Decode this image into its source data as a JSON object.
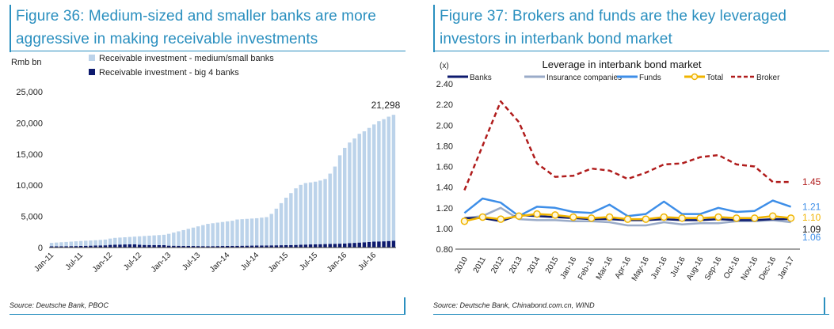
{
  "figure36": {
    "title_line1": "Figure 36: Medium-sized and smaller banks are more",
    "title_line2": "aggressive in making receivable investments",
    "source": "Source: Deutsche Bank, PBOC",
    "colors": {
      "medium_small": "#bcd3ea",
      "big4": "#0d1a6e",
      "title": "#2a8fbf"
    }
  },
  "figure37": {
    "title_line1": "Figure 37: Brokers and funds are the key leveraged",
    "title_line2": "investors in interbank bond market",
    "source": "Source: Deutsche Bank, Chinabond.com.cn, WIND",
    "colors": {
      "banks": "#0d1a6e",
      "insurance": "#9aabc8",
      "funds": "#3d8ee8",
      "total": "#f0b400",
      "broker": "#b01c1c"
    }
  },
  "chart_data": [
    {
      "type": "bar",
      "stacked": true,
      "title": "",
      "ylabel": "Rmb bn",
      "xlabel": "",
      "ylim": [
        0,
        25000
      ],
      "yticks": [
        "25,000",
        "20,000",
        "15,000",
        "10,000",
        "5,000",
        "0"
      ],
      "ytick_values": [
        25000,
        20000,
        15000,
        10000,
        5000,
        0
      ],
      "xtick_labels": [
        "Jan-11",
        "Jul-11",
        "Jan-12",
        "Jul-12",
        "Jan-13",
        "Jul-13",
        "Jan-14",
        "Jul-14",
        "Jan-15",
        "Jul-15",
        "Jan-16",
        "Jul-16"
      ],
      "xtick_every": 6,
      "legend": [
        "Receivable investment - medium/small banks",
        "Receivable investment - big 4 banks"
      ],
      "annotation": "21,298",
      "series": [
        {
          "name": "Receivable investment - big 4 banks",
          "values": [
            190,
            200,
            210,
            220,
            230,
            240,
            260,
            280,
            300,
            320,
            340,
            360,
            430,
            470,
            480,
            500,
            510,
            520,
            450,
            420,
            410,
            400,
            390,
            380,
            300,
            290,
            280,
            270,
            260,
            250,
            240,
            230,
            220,
            230,
            240,
            250,
            260,
            270,
            280,
            290,
            300,
            310,
            320,
            330,
            340,
            350,
            360,
            370,
            380,
            400,
            420,
            450,
            480,
            500,
            520,
            540,
            560,
            580,
            600,
            620,
            650,
            700,
            750,
            800,
            850,
            900,
            950,
            980,
            1000,
            1050,
            1100
          ]
        },
        {
          "name": "Receivable investment - medium/small banks",
          "values": [
            560,
            600,
            640,
            680,
            720,
            760,
            790,
            810,
            830,
            850,
            880,
            920,
            1010,
            1080,
            1120,
            1150,
            1190,
            1230,
            1350,
            1430,
            1490,
            1550,
            1610,
            1670,
            1900,
            2110,
            2320,
            2530,
            2740,
            2950,
            3160,
            3370,
            3580,
            3670,
            3760,
            3850,
            3940,
            4030,
            4220,
            4260,
            4300,
            4340,
            4380,
            4470,
            4540,
            5050,
            5880,
            6750,
            7620,
            8330,
            9080,
            9600,
            9870,
            9950,
            10050,
            10210,
            10440,
            11280,
            12400,
            14180,
            15350,
            16150,
            16750,
            17450,
            17800,
            18300,
            18800,
            19300,
            19600,
            19950,
            20198
          ]
        }
      ],
      "totals_note": "Last bar total 21,298"
    },
    {
      "type": "line",
      "title": "Leverage in interbank bond market",
      "ylabel": "(x)",
      "ylim": [
        0.8,
        2.4
      ],
      "yticks": [
        "2.40",
        "2.20",
        "2.00",
        "1.80",
        "1.60",
        "1.40",
        "1.20",
        "1.00",
        "0.80"
      ],
      "ytick_values": [
        2.4,
        2.2,
        2.0,
        1.8,
        1.6,
        1.4,
        1.2,
        1.0,
        0.8
      ],
      "x": [
        "2010",
        "2011",
        "2012",
        "2013",
        "2014",
        "2015",
        "Jan-16",
        "Feb-16",
        "Mar-16",
        "Apr-16",
        "May-16",
        "Jun-16",
        "Jul-16",
        "Aug-16",
        "Sep-16",
        "Oct-16",
        "Nov-16",
        "Dec-16",
        "Jan-17"
      ],
      "series": [
        {
          "name": "Banks",
          "values": [
            1.1,
            1.1,
            1.07,
            1.13,
            1.12,
            1.11,
            1.1,
            1.09,
            1.09,
            1.08,
            1.08,
            1.09,
            1.08,
            1.08,
            1.09,
            1.08,
            1.08,
            1.09,
            1.09
          ]
        },
        {
          "name": "Insurance companies",
          "values": [
            1.1,
            1.12,
            1.2,
            1.09,
            1.08,
            1.08,
            1.07,
            1.07,
            1.06,
            1.03,
            1.03,
            1.06,
            1.04,
            1.05,
            1.05,
            1.07,
            1.07,
            1.08,
            1.06
          ]
        },
        {
          "name": "Funds",
          "values": [
            1.15,
            1.29,
            1.25,
            1.12,
            1.21,
            1.2,
            1.16,
            1.15,
            1.23,
            1.12,
            1.14,
            1.26,
            1.14,
            1.14,
            1.2,
            1.16,
            1.17,
            1.27,
            1.21
          ]
        },
        {
          "name": "Total",
          "values": [
            1.07,
            1.11,
            1.09,
            1.12,
            1.14,
            1.13,
            1.11,
            1.1,
            1.11,
            1.09,
            1.09,
            1.11,
            1.1,
            1.1,
            1.11,
            1.1,
            1.1,
            1.12,
            1.1
          ]
        },
        {
          "name": "Broker",
          "values": [
            1.37,
            1.8,
            2.23,
            2.03,
            1.63,
            1.5,
            1.51,
            1.58,
            1.56,
            1.48,
            1.54,
            1.62,
            1.63,
            1.69,
            1.71,
            1.62,
            1.6,
            1.45,
            1.45
          ]
        }
      ],
      "end_labels": [
        {
          "series": "Broker",
          "text": "1.45"
        },
        {
          "series": "Funds",
          "text": "1.21"
        },
        {
          "series": "Total",
          "text": "1.10"
        },
        {
          "series": "Banks",
          "text": "1.09"
        },
        {
          "series": "Insurance companies",
          "text": "1.06"
        }
      ],
      "legend": [
        "Banks",
        "Insurance companies",
        "Funds",
        "Total",
        "Broker"
      ]
    }
  ]
}
